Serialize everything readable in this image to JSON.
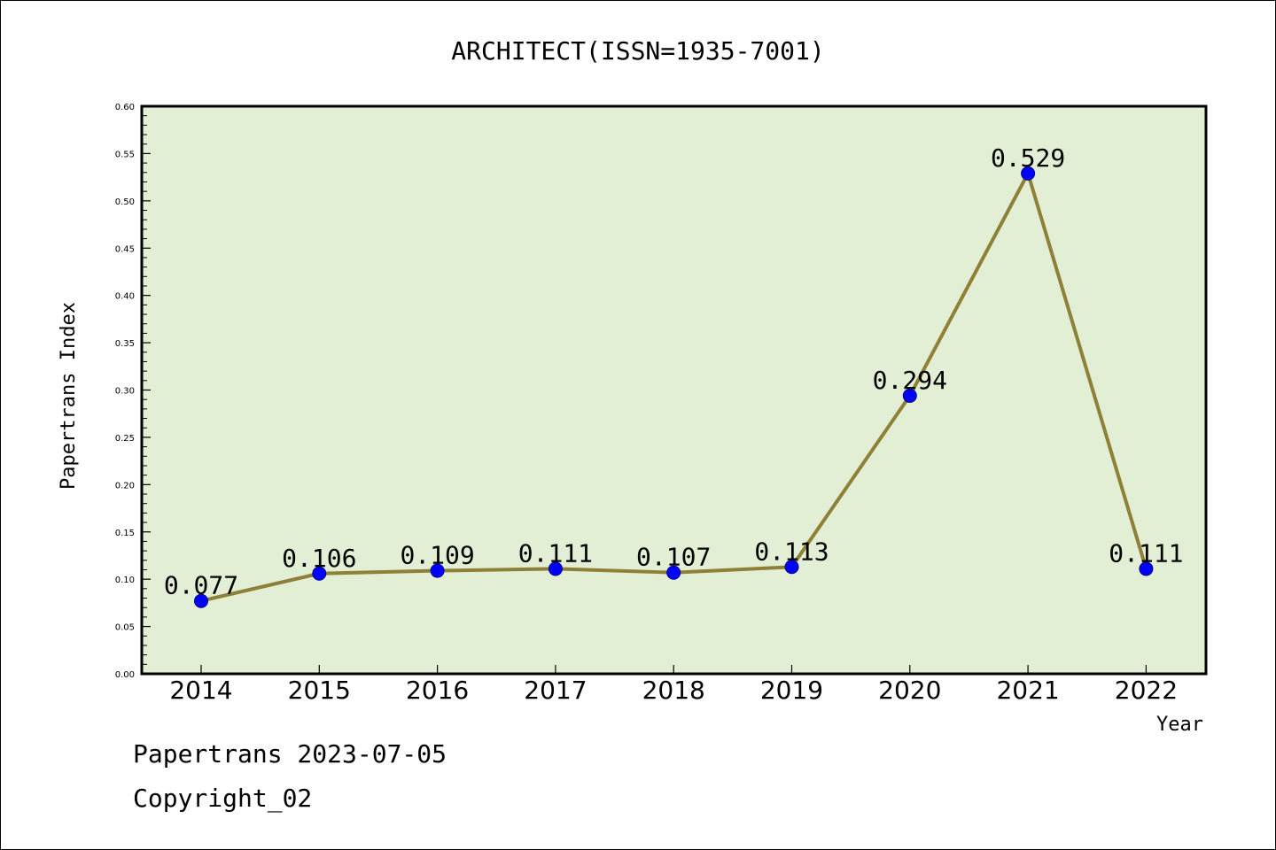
{
  "chart_data": {
    "type": "line",
    "title": "ARCHITECT(ISSN=1935-7001)",
    "xlabel": "Year",
    "ylabel": "Papertrans Index",
    "categories": [
      "2014",
      "2015",
      "2016",
      "2017",
      "2018",
      "2019",
      "2020",
      "2021",
      "2022"
    ],
    "series": [
      {
        "values": [
          0.077,
          0.106,
          0.109,
          0.111,
          0.107,
          0.113,
          0.294,
          0.529,
          0.111
        ],
        "labels": [
          "0.077",
          "0.106",
          "0.109",
          "0.111",
          "0.107",
          "0.113",
          "0.294",
          "0.529",
          "0.111"
        ]
      }
    ],
    "ylim": [
      0,
      0.6
    ],
    "yticks": [
      "0.00",
      "0.05",
      "0.10",
      "0.15",
      "0.20",
      "0.25",
      "0.30",
      "0.35",
      "0.40",
      "0.45",
      "0.50",
      "0.55",
      "0.60"
    ],
    "grid": false,
    "colors": {
      "plot_background": "#e2efd5",
      "line": "#8e8036",
      "marker": "#0000ff",
      "marker_edge": "#00008b"
    }
  },
  "footer": {
    "line1": "Papertrans 2023-07-05",
    "line2": "Copyright_02"
  }
}
